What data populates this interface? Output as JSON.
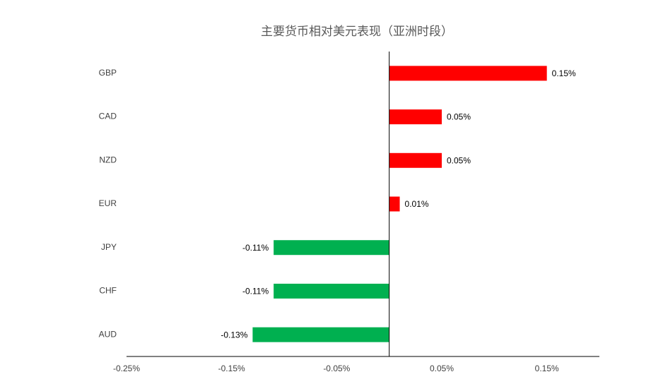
{
  "chart_data": {
    "type": "hbar",
    "title": "主要货币相对美元表现（亚洲时段）",
    "categories": [
      "GBP",
      "CAD",
      "NZD",
      "EUR",
      "JPY",
      "CHF",
      "AUD"
    ],
    "values": [
      0.15,
      0.05,
      0.05,
      0.01,
      -0.11,
      -0.11,
      -0.13
    ],
    "value_labels": [
      "0.15%",
      "0.05%",
      "0.05%",
      "0.01%",
      "-0.11%",
      "-0.11%",
      "-0.13%"
    ],
    "colors": [
      "#ff0000",
      "#ff0000",
      "#ff0000",
      "#ff0000",
      "#00b050",
      "#00b050",
      "#00b050"
    ],
    "xlim": [
      -0.25,
      0.2
    ],
    "xticks": [
      {
        "value": -0.25,
        "label": "-0.25%"
      },
      {
        "value": -0.15,
        "label": "-0.15%"
      },
      {
        "value": -0.05,
        "label": "-0.05%"
      },
      {
        "value": 0.05,
        "label": "0.05%"
      },
      {
        "value": 0.15,
        "label": "0.15%"
      }
    ]
  }
}
